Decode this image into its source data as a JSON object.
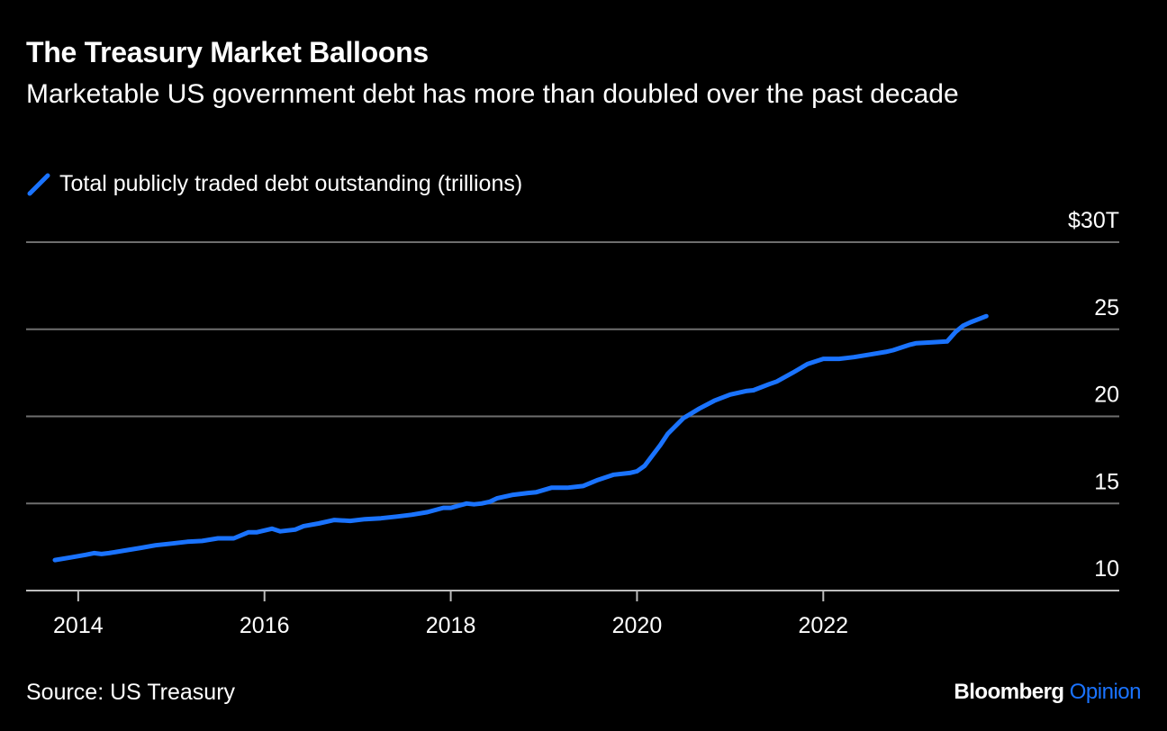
{
  "title": "The Treasury Market Balloons",
  "subtitle": "Marketable US government debt has more than doubled over the past decade",
  "legend_label": "Total publicly traded debt outstanding (trillions)",
  "source": "Source: US Treasury",
  "brand": {
    "main": "Bloomberg",
    "accent": "Opinion"
  },
  "colors": {
    "series": "#1a73ff",
    "background": "#000000",
    "grid": "#6e6e6e",
    "text": "#ffffff"
  },
  "chart_data": {
    "type": "line",
    "title": "The Treasury Market Balloons",
    "ylabel": "",
    "xlabel": "",
    "ylim": [
      10,
      30
    ],
    "xlim": [
      2013.75,
      2024.25
    ],
    "grid": true,
    "legend": "top-left",
    "y_axis_side": "right",
    "y_ticks": [
      {
        "value": 30,
        "label": "$30T"
      },
      {
        "value": 25,
        "label": "25"
      },
      {
        "value": 20,
        "label": "20"
      },
      {
        "value": 15,
        "label": "15"
      },
      {
        "value": 10,
        "label": "10"
      }
    ],
    "x_ticks": [
      {
        "value": 2014,
        "label": "2014"
      },
      {
        "value": 2016,
        "label": "2016"
      },
      {
        "value": 2018,
        "label": "2018"
      },
      {
        "value": 2020,
        "label": "2020"
      },
      {
        "value": 2022,
        "label": "2022"
      }
    ],
    "series": [
      {
        "name": "Total publicly traded debt outstanding (trillions)",
        "x": [
          2013.75,
          2013.92,
          2014.08,
          2014.17,
          2014.25,
          2014.33,
          2014.5,
          2014.67,
          2014.83,
          2015.0,
          2015.17,
          2015.33,
          2015.5,
          2015.67,
          2015.83,
          2015.92,
          2016.08,
          2016.17,
          2016.33,
          2016.42,
          2016.58,
          2016.75,
          2016.92,
          2017.08,
          2017.25,
          2017.42,
          2017.58,
          2017.75,
          2017.92,
          2018.0,
          2018.17,
          2018.25,
          2018.33,
          2018.42,
          2018.5,
          2018.67,
          2018.83,
          2018.92,
          2019.08,
          2019.25,
          2019.42,
          2019.58,
          2019.75,
          2019.92,
          2020.0,
          2020.08,
          2020.25,
          2020.33,
          2020.5,
          2020.67,
          2020.83,
          2021.0,
          2021.17,
          2021.25,
          2021.42,
          2021.5,
          2021.67,
          2021.83,
          2022.0,
          2022.17,
          2022.25,
          2022.33,
          2022.5,
          2022.67,
          2022.75,
          2022.92,
          2023.0,
          2023.17,
          2023.33,
          2023.42,
          2023.5,
          2023.58,
          2023.75
        ],
        "values": [
          11.75,
          11.9,
          12.05,
          12.15,
          12.1,
          12.15,
          12.3,
          12.45,
          12.6,
          12.7,
          12.8,
          12.85,
          13.0,
          13.0,
          13.35,
          13.35,
          13.55,
          13.4,
          13.5,
          13.7,
          13.85,
          14.05,
          14.0,
          14.1,
          14.15,
          14.25,
          14.35,
          14.5,
          14.75,
          14.75,
          15.0,
          14.95,
          15.0,
          15.1,
          15.3,
          15.5,
          15.6,
          15.65,
          15.9,
          15.9,
          16.0,
          16.35,
          16.65,
          16.75,
          16.85,
          17.15,
          18.35,
          19.0,
          19.9,
          20.45,
          20.9,
          21.25,
          21.45,
          21.5,
          21.85,
          22.0,
          22.5,
          23.0,
          23.3,
          23.3,
          23.35,
          23.4,
          23.55,
          23.7,
          23.8,
          24.1,
          24.2,
          24.25,
          24.3,
          24.85,
          25.2,
          25.4,
          25.75
        ]
      }
    ]
  }
}
